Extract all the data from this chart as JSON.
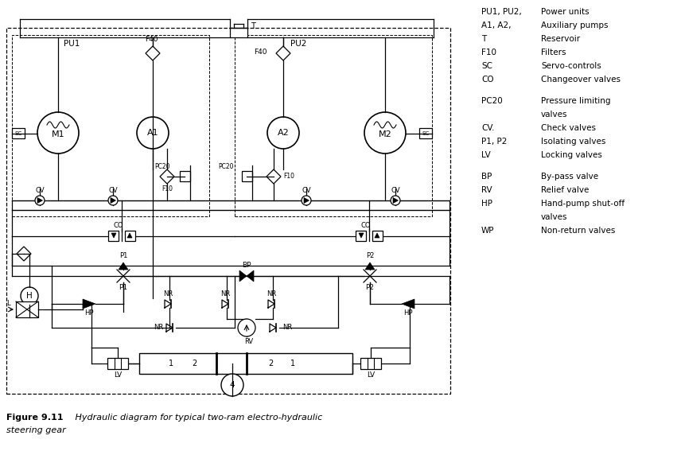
{
  "bg_color": "#ffffff",
  "line_color": "#000000",
  "fig_label_bold": "Figure 9.11",
  "legend": [
    [
      "PU1, PU2,",
      "Power units"
    ],
    [
      "A1, A2,",
      "Auxiliary pumps"
    ],
    [
      "T",
      "Reservoir"
    ],
    [
      "F10",
      "Filters"
    ],
    [
      "SC",
      "Servo-controls"
    ],
    [
      "CO",
      "Changeover valves"
    ],
    [
      "PC20",
      "Pressure limiting\nvalves"
    ],
    [
      "CV.",
      "Check valves"
    ],
    [
      "P1, P2",
      "Isolating valves"
    ],
    [
      "LV",
      "Locking valves"
    ],
    [
      "BP",
      "By-pass valve"
    ],
    [
      "RV",
      "Relief valve"
    ],
    [
      "HP",
      "Hand-pump shut-off\nvalves"
    ],
    [
      "WP",
      "Non-return valves"
    ]
  ]
}
